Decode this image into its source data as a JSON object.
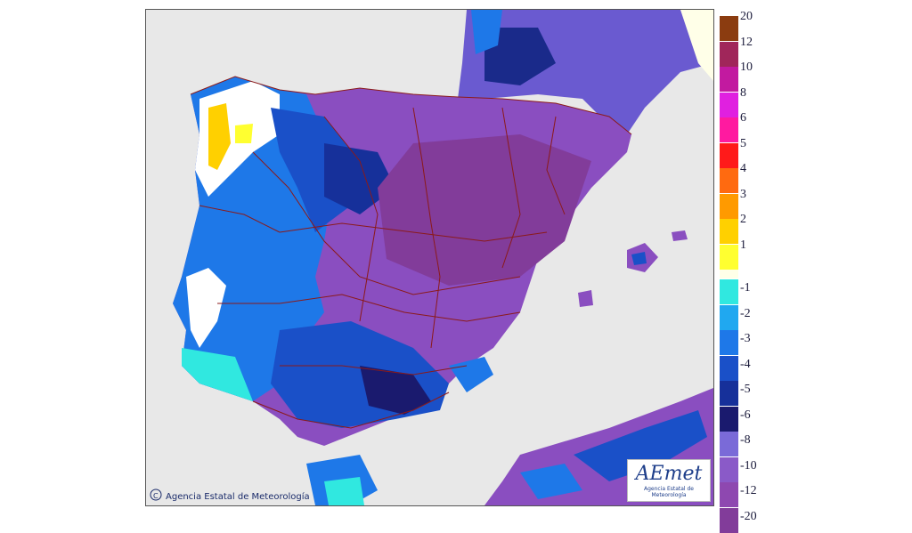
{
  "map": {
    "copyright_text": "Agencia Estatal de Meteorología",
    "logo_text": "AEmet",
    "logo_subtext": "Agencia Estatal de Meteorología",
    "colors": {
      "sea": "#e8e8e8",
      "borders": "#8b1a1a",
      "white_zone": "#ffffff"
    }
  },
  "legend": {
    "positive": [
      {
        "label": "20",
        "color": "#8b3c10"
      },
      {
        "label": "12",
        "color": "#a0265a"
      },
      {
        "label": "10",
        "color": "#c21aa0"
      },
      {
        "label": "8",
        "color": "#e020e0"
      },
      {
        "label": "6",
        "color": "#ff1aa0"
      },
      {
        "label": "5",
        "color": "#ff1a1a"
      },
      {
        "label": "4",
        "color": "#ff6a10"
      },
      {
        "label": "3",
        "color": "#ff9a00"
      },
      {
        "label": "2",
        "color": "#ffd000"
      },
      {
        "label": "1",
        "color": "#ffff30"
      }
    ],
    "negative": [
      {
        "label": "-1",
        "color": "#30e8e0"
      },
      {
        "label": "-2",
        "color": "#20a8f0"
      },
      {
        "label": "-3",
        "color": "#1e78e8"
      },
      {
        "label": "-4",
        "color": "#1a50c8"
      },
      {
        "label": "-5",
        "color": "#16309a"
      },
      {
        "label": "-6",
        "color": "#1a1a6e"
      },
      {
        "label": "-8",
        "color": "#7a6ad8"
      },
      {
        "label": "-10",
        "color": "#8a5ac8"
      },
      {
        "label": "-12",
        "color": "#8e48b0"
      },
      {
        "label": "-20",
        "color": "#823c9a"
      }
    ],
    "upper_fill": "#ffffe8"
  }
}
